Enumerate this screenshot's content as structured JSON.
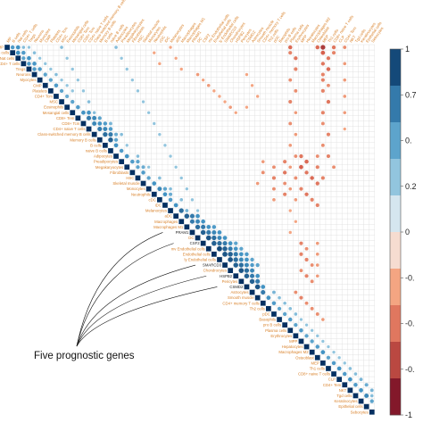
{
  "colors": {
    "label": "#d9822b",
    "highlight": "#1f1f1f",
    "positive": "#2166ac",
    "negative": "#b2182b",
    "grid": "#dcdcdc"
  },
  "chart_data": {
    "type": "heatmap",
    "subtype": "correlation-matrix-upper-triangle-circles",
    "variables": [
      "MP",
      "B cells",
      "Nat cells",
      "CD4+ T cells",
      "Tregs",
      "Neurons",
      "Myocytes",
      "CMP",
      "Platelets",
      "CD4+ Tcm",
      "MSC",
      "Eosinophils",
      "Mesangial cells",
      "CD8+ Tem",
      "CD8+ Tcm",
      "CD4+ naive T cells",
      "Class-switched memory B cells",
      "Memory B cells",
      "B cells",
      "naive B cells",
      "Adipocytes",
      "Preadipocytes",
      "Megakaryocytes",
      "Fibroblasts",
      "HSC",
      "Skeletal muscle",
      "Monocytes",
      "Neutrophils",
      "cDC",
      "iDC",
      "Melanocytes",
      "aDC",
      "Macrophages",
      "Macrophages M1",
      "PRAM1",
      "DC",
      "CSF2",
      "mv Endothelial cells",
      "Endothelial cells",
      "ly Endothelial cells",
      "SMARCD3",
      "Chondrocytes",
      "HSPB2",
      "Pericytes",
      "CSMD2",
      "Astrocytes",
      "Smooth muscle",
      "CD4+ memory T cells",
      "Th2 cells",
      "pDC",
      "Basophils",
      "pro B cells",
      "Plasma cells",
      "Erythrocytes",
      "MPP",
      "Hepatocytes",
      "Macrophages M2",
      "Osteoblast",
      "MEP",
      "Th1 cells",
      "CD8+ naive T cells",
      "CLP",
      "CD4+ Tem",
      "NKT",
      "Tgd cells",
      "Keratinocytes",
      "Epithelial cells",
      "Sebocytes"
    ],
    "highlighted_genes": [
      "PRAM1",
      "CSF2",
      "SMARCD3",
      "HSPB2",
      "CSMD2"
    ],
    "annotation": "Five prognostic genes",
    "legend": {
      "position": "right",
      "range": [
        -1,
        1
      ],
      "tick_labels": [
        "1",
        "0.7",
        "0.",
        "0.2",
        "0",
        "-0.",
        "-0.",
        "-0.",
        "-1"
      ]
    },
    "cells": [
      [
        1,
        3,
        0.55
      ],
      [
        2,
        4,
        0.6
      ],
      [
        3,
        5,
        0.58
      ],
      [
        4,
        6,
        0.55
      ],
      [
        5,
        7,
        0.5
      ],
      [
        6,
        8,
        0.5
      ],
      [
        7,
        9,
        0.55
      ],
      [
        8,
        10,
        0.5
      ],
      [
        9,
        11,
        0.45
      ],
      [
        10,
        12,
        0.5
      ],
      [
        11,
        13,
        0.55
      ],
      [
        12,
        14,
        0.6
      ],
      [
        13,
        15,
        0.7
      ],
      [
        14,
        16,
        0.65
      ],
      [
        15,
        17,
        0.7
      ],
      [
        16,
        18,
        0.75
      ],
      [
        17,
        19,
        0.8
      ],
      [
        18,
        20,
        0.6
      ],
      [
        19,
        21,
        0.55
      ],
      [
        20,
        22,
        0.6
      ],
      [
        21,
        23,
        0.55
      ],
      [
        22,
        24,
        0.5
      ],
      [
        23,
        25,
        0.55
      ],
      [
        24,
        26,
        0.5
      ],
      [
        25,
        27,
        0.6
      ],
      [
        26,
        28,
        0.65
      ],
      [
        27,
        29,
        0.6
      ],
      [
        28,
        30,
        0.55
      ],
      [
        29,
        31,
        0.6
      ],
      [
        30,
        32,
        0.75
      ],
      [
        31,
        33,
        0.8
      ],
      [
        32,
        34,
        0.7
      ],
      [
        33,
        35,
        0.75
      ],
      [
        34,
        36,
        0.8
      ],
      [
        35,
        37,
        0.85
      ],
      [
        36,
        38,
        0.8
      ],
      [
        37,
        39,
        0.9
      ],
      [
        38,
        40,
        0.85
      ],
      [
        39,
        41,
        0.85
      ],
      [
        40,
        42,
        0.8
      ],
      [
        41,
        43,
        0.85
      ],
      [
        42,
        44,
        0.8
      ],
      [
        43,
        45,
        0.8
      ],
      [
        44,
        46,
        0.85
      ],
      [
        45,
        47,
        0.7
      ],
      [
        46,
        48,
        0.6
      ],
      [
        47,
        49,
        0.55
      ],
      [
        48,
        50,
        0.5
      ],
      [
        49,
        51,
        0.5
      ],
      [
        50,
        52,
        0.55
      ],
      [
        51,
        53,
        0.5
      ],
      [
        52,
        54,
        0.55
      ],
      [
        53,
        55,
        0.5
      ],
      [
        54,
        56,
        0.5
      ],
      [
        55,
        57,
        0.55
      ],
      [
        56,
        58,
        0.6
      ],
      [
        57,
        59,
        0.5
      ],
      [
        58,
        60,
        0.55
      ],
      [
        59,
        61,
        0.6
      ],
      [
        60,
        62,
        0.55
      ],
      [
        61,
        63,
        0.6
      ],
      [
        62,
        64,
        0.55
      ],
      [
        63,
        65,
        0.6
      ],
      [
        64,
        66,
        0.65
      ],
      [
        0,
        2,
        0.6
      ],
      [
        12,
        15,
        0.6
      ],
      [
        13,
        16,
        0.65
      ],
      [
        14,
        17,
        0.6
      ],
      [
        15,
        18,
        0.65
      ],
      [
        16,
        19,
        0.7
      ],
      [
        17,
        20,
        0.5
      ],
      [
        31,
        34,
        0.7
      ],
      [
        32,
        35,
        0.65
      ],
      [
        33,
        36,
        0.7
      ],
      [
        34,
        37,
        0.7
      ],
      [
        35,
        38,
        0.75
      ],
      [
        36,
        39,
        0.75
      ],
      [
        37,
        40,
        0.8
      ],
      [
        38,
        41,
        0.8
      ],
      [
        39,
        42,
        0.75
      ],
      [
        40,
        43,
        0.75
      ],
      [
        41,
        44,
        0.75
      ],
      [
        42,
        45,
        0.7
      ],
      [
        43,
        46,
        0.7
      ],
      [
        44,
        47,
        0.6
      ],
      [
        13,
        17,
        0.5
      ],
      [
        14,
        18,
        0.55
      ],
      [
        15,
        19,
        0.55
      ],
      [
        16,
        20,
        0.45
      ],
      [
        31,
        35,
        0.6
      ],
      [
        32,
        36,
        0.6
      ],
      [
        33,
        37,
        0.6
      ],
      [
        34,
        38,
        0.65
      ],
      [
        35,
        39,
        0.65
      ],
      [
        36,
        40,
        0.7
      ],
      [
        37,
        41,
        0.7
      ],
      [
        38,
        42,
        0.7
      ],
      [
        39,
        43,
        0.65
      ],
      [
        40,
        44,
        0.65
      ],
      [
        41,
        45,
        0.65
      ],
      [
        42,
        46,
        0.6
      ],
      [
        33,
        38,
        0.55
      ],
      [
        34,
        39,
        0.6
      ],
      [
        35,
        40,
        0.6
      ],
      [
        36,
        41,
        0.6
      ],
      [
        37,
        42,
        0.6
      ],
      [
        38,
        43,
        0.6
      ],
      [
        39,
        44,
        0.6
      ],
      [
        40,
        45,
        0.55
      ],
      [
        36,
        42,
        0.5
      ],
      [
        37,
        43,
        0.5
      ],
      [
        38,
        44,
        0.55
      ],
      [
        39,
        45,
        0.5
      ],
      [
        40,
        46,
        0.5
      ],
      [
        21,
        24,
        0.5
      ],
      [
        22,
        25,
        0.45
      ],
      [
        26,
        29,
        0.5
      ],
      [
        27,
        30,
        0.45
      ],
      [
        0,
        4,
        0.3
      ],
      [
        1,
        5,
        0.35
      ],
      [
        2,
        6,
        0.3
      ],
      [
        3,
        7,
        0.3
      ],
      [
        4,
        8,
        0.3
      ],
      [
        5,
        9,
        0.35
      ],
      [
        6,
        10,
        0.3
      ],
      [
        7,
        11,
        0.3
      ],
      [
        8,
        12,
        0.3
      ],
      [
        0,
        58,
        -0.75
      ],
      [
        1,
        58,
        -0.6
      ],
      [
        0,
        57,
        -0.55
      ],
      [
        3,
        58,
        -0.5
      ],
      [
        2,
        59,
        -0.5
      ],
      [
        4,
        59,
        -0.55
      ],
      [
        5,
        58,
        -0.45
      ],
      [
        0,
        60,
        -0.5
      ],
      [
        1,
        60,
        -0.45
      ],
      [
        6,
        58,
        -0.45
      ],
      [
        7,
        59,
        -0.4
      ],
      [
        8,
        58,
        -0.45
      ],
      [
        10,
        59,
        -0.5
      ],
      [
        12,
        58,
        -0.45
      ],
      [
        14,
        58,
        -0.4
      ],
      [
        16,
        59,
        -0.45
      ],
      [
        18,
        58,
        -0.4
      ],
      [
        20,
        59,
        -0.45
      ],
      [
        22,
        60,
        -0.4
      ],
      [
        24,
        58,
        -0.45
      ],
      [
        0,
        62,
        -0.4
      ],
      [
        3,
        62,
        -0.35
      ],
      [
        6,
        62,
        -0.35
      ],
      [
        9,
        62,
        -0.35
      ],
      [
        12,
        62,
        -0.35
      ],
      [
        15,
        62,
        -0.3
      ],
      [
        0,
        52,
        -0.55
      ],
      [
        1,
        52,
        -0.45
      ],
      [
        2,
        53,
        -0.5
      ],
      [
        4,
        53,
        -0.45
      ],
      [
        6,
        52,
        -0.4
      ],
      [
        8,
        53,
        -0.4
      ],
      [
        10,
        52,
        -0.45
      ],
      [
        12,
        53,
        -0.35
      ],
      [
        14,
        52,
        -0.4
      ],
      [
        16,
        53,
        -0.35
      ],
      [
        18,
        52,
        -0.35
      ],
      [
        20,
        53,
        -0.4
      ],
      [
        22,
        52,
        -0.35
      ],
      [
        24,
        53,
        -0.4
      ],
      [
        26,
        52,
        -0.35
      ],
      [
        28,
        53,
        -0.35
      ],
      [
        30,
        52,
        -0.3
      ],
      [
        32,
        53,
        -0.3
      ],
      [
        34,
        52,
        -0.3
      ],
      [
        20,
        54,
        -0.5
      ],
      [
        21,
        55,
        -0.55
      ],
      [
        22,
        54,
        -0.6
      ],
      [
        23,
        55,
        -0.5
      ],
      [
        24,
        56,
        -0.55
      ],
      [
        25,
        57,
        -0.5
      ],
      [
        26,
        54,
        -0.45
      ],
      [
        27,
        55,
        -0.5
      ],
      [
        28,
        56,
        -0.45
      ],
      [
        29,
        57,
        -0.45
      ],
      [
        20,
        57,
        -0.4
      ],
      [
        22,
        57,
        -0.45
      ],
      [
        21,
        51,
        -0.45
      ],
      [
        23,
        51,
        -0.5
      ],
      [
        25,
        51,
        -0.4
      ],
      [
        27,
        51,
        -0.45
      ],
      [
        22,
        49,
        -0.4
      ],
      [
        24,
        49,
        -0.45
      ],
      [
        26,
        49,
        -0.4
      ],
      [
        28,
        49,
        -0.35
      ],
      [
        21,
        47,
        -0.35
      ],
      [
        23,
        47,
        -0.4
      ],
      [
        25,
        46,
        -0.35
      ],
      [
        36,
        54,
        -0.45
      ],
      [
        37,
        55,
        -0.4
      ],
      [
        38,
        54,
        -0.45
      ],
      [
        39,
        55,
        -0.45
      ],
      [
        40,
        56,
        -0.4
      ],
      [
        41,
        54,
        -0.4
      ],
      [
        42,
        55,
        -0.45
      ],
      [
        43,
        56,
        -0.4
      ],
      [
        36,
        57,
        -0.35
      ],
      [
        38,
        57,
        -0.35
      ],
      [
        40,
        57,
        -0.35
      ],
      [
        42,
        57,
        -0.35
      ],
      [
        5,
        35,
        -0.35
      ],
      [
        6,
        36,
        -0.3
      ],
      [
        7,
        37,
        -0.35
      ],
      [
        8,
        38,
        -0.3
      ],
      [
        9,
        39,
        -0.3
      ],
      [
        10,
        40,
        -0.3
      ],
      [
        11,
        41,
        -0.35
      ],
      [
        12,
        42,
        -0.3
      ],
      [
        5,
        44,
        -0.3
      ],
      [
        7,
        45,
        -0.3
      ],
      [
        9,
        46,
        -0.3
      ],
      [
        11,
        44,
        -0.3
      ],
      [
        45,
        53,
        -0.4
      ],
      [
        46,
        54,
        -0.45
      ],
      [
        47,
        55,
        -0.4
      ],
      [
        48,
        56,
        -0.4
      ],
      [
        49,
        57,
        -0.4
      ],
      [
        50,
        58,
        -0.35
      ],
      [
        0,
        30,
        -0.3
      ],
      [
        2,
        31,
        -0.3
      ],
      [
        4,
        32,
        -0.3
      ],
      [
        1,
        27,
        -0.3
      ],
      [
        3,
        28,
        -0.3
      ],
      [
        0,
        20,
        0.35
      ],
      [
        2,
        21,
        0.3
      ],
      [
        4,
        22,
        0.3
      ],
      [
        6,
        23,
        0.3
      ],
      [
        8,
        24,
        0.3
      ],
      [
        10,
        25,
        0.3
      ],
      [
        12,
        26,
        0.3
      ],
      [
        14,
        27,
        0.3
      ],
      [
        16,
        28,
        0.3
      ],
      [
        18,
        29,
        0.3
      ],
      [
        20,
        30,
        0.3
      ],
      [
        22,
        31,
        0.3
      ],
      [
        24,
        32,
        0.3
      ],
      [
        26,
        33,
        0.3
      ],
      [
        28,
        34,
        0.3
      ],
      [
        30,
        35,
        0.3
      ],
      [
        0,
        10,
        0.35
      ],
      [
        2,
        11,
        0.3
      ],
      [
        4,
        12,
        0.3
      ],
      [
        6,
        13,
        0.3
      ],
      [
        8,
        14,
        0.3
      ],
      [
        10,
        15,
        0.35
      ],
      [
        12,
        16,
        0.35
      ],
      [
        14,
        19,
        0.4
      ],
      [
        16,
        21,
        0.35
      ],
      [
        18,
        22,
        0.3
      ],
      [
        20,
        24,
        0.35
      ],
      [
        22,
        26,
        0.3
      ],
      [
        24,
        28,
        0.35
      ],
      [
        26,
        30,
        0.35
      ],
      [
        28,
        32,
        0.35
      ],
      [
        30,
        33,
        0.4
      ],
      [
        45,
        49,
        0.4
      ],
      [
        46,
        50,
        0.35
      ],
      [
        47,
        51,
        0.35
      ],
      [
        48,
        52,
        0.35
      ],
      [
        49,
        53,
        0.35
      ],
      [
        50,
        54,
        0.3
      ],
      [
        51,
        55,
        0.3
      ],
      [
        52,
        56,
        0.3
      ],
      [
        53,
        57,
        0.3
      ],
      [
        54,
        58,
        0.3
      ],
      [
        55,
        59,
        0.3
      ],
      [
        56,
        60,
        0.3
      ],
      [
        57,
        61,
        0.3
      ],
      [
        58,
        62,
        0.3
      ],
      [
        59,
        63,
        0.35
      ],
      [
        60,
        64,
        0.35
      ],
      [
        61,
        65,
        0.4
      ],
      [
        62,
        66,
        0.45
      ],
      [
        63,
        67,
        0.4
      ],
      [
        64,
        67,
        0.35
      ],
      [
        65,
        67,
        0.5
      ],
      [
        0,
        1,
        0.55
      ],
      [
        0,
        3,
        0.35
      ],
      [
        1,
        2,
        0.6
      ],
      [
        2,
        3,
        0.5
      ],
      [
        3,
        4,
        0.55
      ],
      [
        4,
        5,
        0.55
      ]
    ]
  }
}
